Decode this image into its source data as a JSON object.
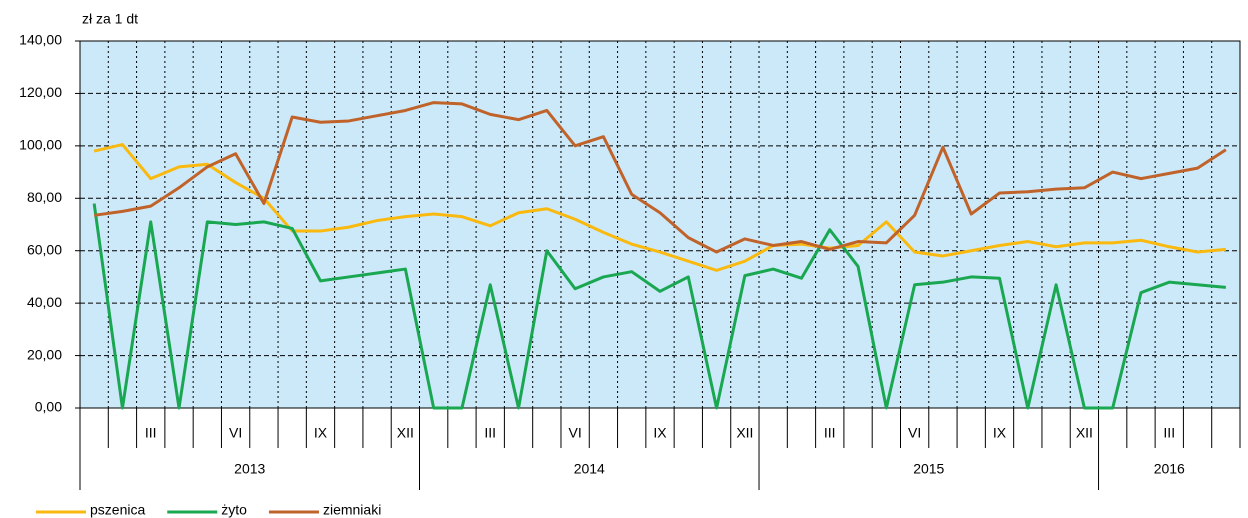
{
  "chart_data": {
    "type": "line",
    "ylabel": "zł za 1 dt",
    "categories": [
      null,
      null,
      "III",
      null,
      null,
      "VI",
      null,
      null,
      "IX",
      null,
      null,
      "XII",
      null,
      null,
      "III",
      null,
      null,
      "VI",
      null,
      null,
      "IX",
      null,
      null,
      "XII",
      null,
      null,
      "III",
      null,
      null,
      "VI",
      null,
      null,
      "IX",
      null,
      null,
      "XII",
      null,
      null,
      "III",
      null,
      null
    ],
    "year_labels": [
      "2013",
      "2014",
      "2015",
      "2016"
    ],
    "series": [
      {
        "name": "pszenica",
        "color": "#f9b90f",
        "values": [
          98,
          100.5,
          87.5,
          92,
          93,
          86,
          80,
          67.5,
          67.5,
          69,
          71.5,
          73,
          74,
          73,
          69.5,
          74.5,
          76,
          72,
          67,
          62.5,
          59.5,
          56,
          52.5,
          56,
          62,
          62.5,
          61,
          62,
          71,
          59.5,
          58,
          60,
          62,
          63.5,
          61.5,
          63,
          63,
          64,
          61.5,
          59.5,
          60.5
        ]
      },
      {
        "name": "żyto",
        "color": "#1aa751",
        "values": [
          78,
          0,
          71,
          0,
          71,
          70,
          71,
          68.5,
          48.5,
          50,
          51.5,
          53,
          0,
          0,
          47,
          0,
          60,
          45.5,
          50,
          52,
          44.5,
          50,
          0,
          50.5,
          53,
          49.5,
          68,
          54,
          0,
          47,
          48,
          50,
          49.5,
          0,
          47,
          0,
          0,
          44,
          48,
          47,
          46
        ]
      },
      {
        "name": "ziemniaki",
        "color": "#c0632a",
        "values": [
          73.5,
          75,
          77,
          84,
          92,
          97,
          78,
          111,
          109,
          109.5,
          111.5,
          113.5,
          116.5,
          116,
          112,
          110,
          113.5,
          100,
          103.5,
          81.5,
          74.5,
          65,
          59.5,
          64.5,
          62,
          63.5,
          60.5,
          63.5,
          63,
          73.5,
          99.5,
          74,
          82,
          82.5,
          83.5,
          84,
          90,
          87.5,
          89.5,
          91.5,
          98.5
        ]
      }
    ],
    "ylim": [
      0,
      140
    ],
    "yticks": [
      {
        "value": 0,
        "label": "0,00"
      },
      {
        "value": 20,
        "label": "20,00"
      },
      {
        "value": 40,
        "label": "40,00"
      },
      {
        "value": 60,
        "label": "60,00"
      },
      {
        "value": 80,
        "label": "80,00"
      },
      {
        "value": 100,
        "label": "100,00"
      },
      {
        "value": 120,
        "label": "120,00"
      },
      {
        "value": 140,
        "label": "140,00"
      }
    ],
    "grid": true
  }
}
